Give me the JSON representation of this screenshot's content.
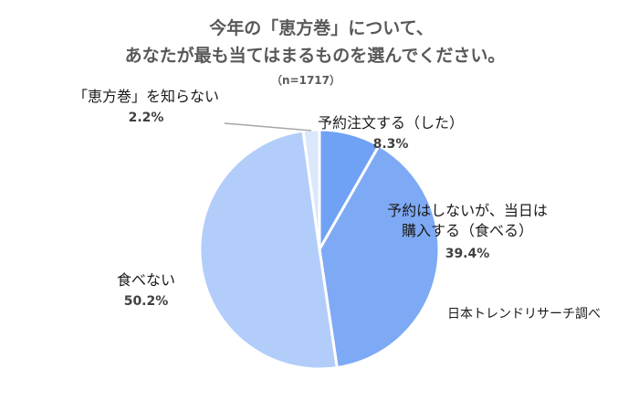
{
  "chart_data": {
    "type": "pie",
    "title_lines": [
      "今年の「恵方巻」について、",
      "あなたが最も当てはまるものを選んでください。"
    ],
    "subtitle": "（n=1717）",
    "source_note": "日本トレンドリサーチ調べ",
    "slices": [
      {
        "label_lines": [
          "予約注文する（した）"
        ],
        "value": 8.3,
        "value_label": "8.3%",
        "color": "#6fa1f5"
      },
      {
        "label_lines": [
          "予約はしないが、当日は",
          "購入する（食べる）"
        ],
        "value": 39.4,
        "value_label": "39.4%",
        "color": "#7ea9f4"
      },
      {
        "label_lines": [
          "食べない"
        ],
        "value": 50.2,
        "value_label": "50.2%",
        "color": "#b3cdfa"
      },
      {
        "label_lines": [
          "「恵方巻」を知らない"
        ],
        "value": 2.2,
        "value_label": "2.2%",
        "color": "#dbe7fb"
      }
    ],
    "start_angle_deg": 0,
    "direction": "clockwise",
    "legend": "none",
    "slice_border_color": "#ffffff"
  }
}
